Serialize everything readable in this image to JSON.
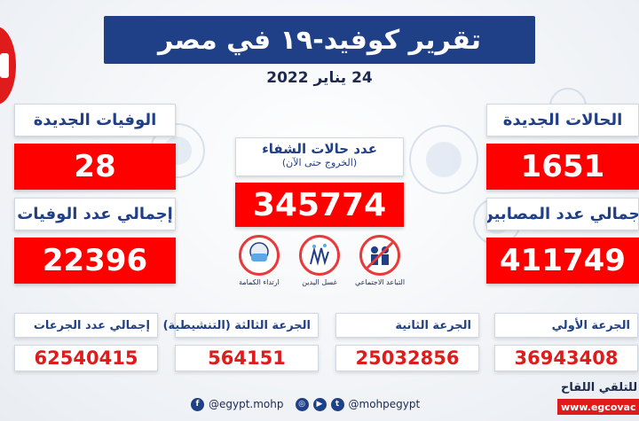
{
  "header": {
    "title": "تقرير كوفيد-١٩ في مصر",
    "date": "24 يناير 2022"
  },
  "stats": {
    "new_deaths": {
      "label": "الوفيات الجديدة",
      "value": "28"
    },
    "total_deaths": {
      "label": "إجمالي عدد الوفيات",
      "value": "22396"
    },
    "new_cases": {
      "label": "الحالات الجديدة",
      "value": "1651"
    },
    "total_cases": {
      "label": "إجمالي عدد المصابين",
      "value": "411749"
    },
    "recovered": {
      "label": "عدد حالات الشفاء",
      "sublabel": "(الخروج حتى الآن)",
      "value": "345774"
    }
  },
  "guidance": [
    {
      "caption": "ارتداء الكمامة",
      "icon": "face-mask-icon"
    },
    {
      "caption": "غسل اليدين",
      "icon": "hand-washing-icon"
    },
    {
      "caption": "التباعد الاجتماعي",
      "icon": "social-distancing-icon"
    }
  ],
  "vaccination": {
    "total_doses": {
      "label": "إجمالي عدد الجرعات",
      "value": "62540415"
    },
    "third_dose": {
      "label": "الجرعة الثالثة (التنشيطية)",
      "value": "564151"
    },
    "second_dose": {
      "label": "الجرعة الثانية",
      "value": "25032856"
    },
    "first_dose": {
      "label": "الجرعة الأولي",
      "value": "36943408"
    }
  },
  "footer": {
    "facebook_handle": "@egypt.mohp",
    "other_handle": "@mohpegypt",
    "vaccine_caption": "للتلقي اللقاح",
    "vaccine_url": "www.egcovac"
  },
  "colors": {
    "navy": "#1f3f86",
    "red": "#ff0000",
    "text_dark": "#1d2a4d"
  }
}
